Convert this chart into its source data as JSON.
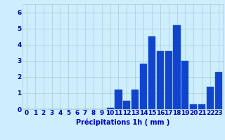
{
  "categories": [
    0,
    1,
    2,
    3,
    4,
    5,
    6,
    7,
    8,
    9,
    10,
    11,
    12,
    13,
    14,
    15,
    16,
    17,
    18,
    19,
    20,
    21,
    22,
    23
  ],
  "values": [
    0,
    0,
    0,
    0,
    0,
    0,
    0,
    0,
    0,
    0,
    0.1,
    1.2,
    0.5,
    1.2,
    2.8,
    4.5,
    3.6,
    3.6,
    5.2,
    3.0,
    0.3,
    0.3,
    1.4,
    2.3
  ],
  "bar_color": "#1144cc",
  "bar_edge_color": "#2255dd",
  "background_color": "#cceeff",
  "plot_bg_color": "#cceeff",
  "grid_color": "#aacccc",
  "xlabel": "Précipitations 1h ( mm )",
  "ylim": [
    0,
    6.5
  ],
  "yticks": [
    0,
    1,
    2,
    3,
    4,
    5,
    6
  ],
  "xlabel_color": "#0000bb",
  "tick_color": "#0000bb",
  "xlabel_fontsize": 7.0,
  "tick_fontsize": 6.5
}
